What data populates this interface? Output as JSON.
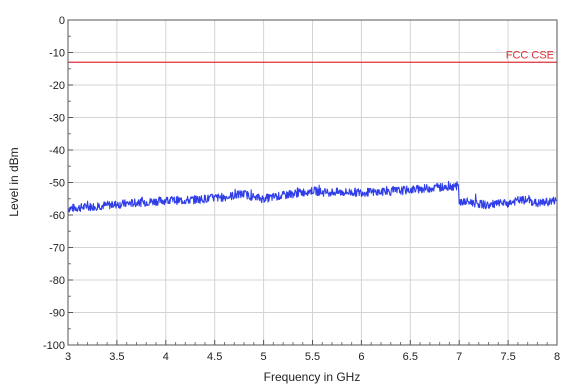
{
  "chart_data": {
    "type": "line",
    "title": "",
    "xlabel": "Frequency in GHz",
    "ylabel": "Level in dBm",
    "xlim": [
      3,
      8
    ],
    "ylim": [
      -100,
      0
    ],
    "x_ticks": [
      3,
      3.5,
      4,
      4.5,
      5,
      5.5,
      6,
      6.5,
      7,
      7.5,
      8
    ],
    "x_tick_labels": [
      "3",
      "3.5",
      "4",
      "4.5",
      "5",
      "5.5",
      "6",
      "6.5",
      "7",
      "7.5",
      "8"
    ],
    "y_ticks": [
      0,
      -10,
      -20,
      -30,
      -40,
      -50,
      -60,
      -70,
      -80,
      -90,
      -100
    ],
    "y_tick_labels": [
      "0",
      "-10",
      "-20",
      "-30",
      "-40",
      "-50",
      "-60",
      "-70",
      "-80",
      "-90",
      "-100"
    ],
    "grid": true,
    "limit_line": {
      "name": "FCC CSE",
      "value": -13,
      "color": "#e0303a"
    },
    "series": [
      {
        "color": "#2f3ee8",
        "x": [
          3.0,
          3.2,
          3.4,
          3.6,
          3.8,
          4.0,
          4.2,
          4.4,
          4.6,
          4.7,
          4.8,
          4.9,
          5.0,
          5.2,
          5.4,
          5.5,
          5.6,
          5.8,
          6.0,
          6.2,
          6.4,
          6.6,
          6.8,
          6.99,
          7.0,
          7.1,
          7.2,
          7.3,
          7.4,
          7.5,
          7.6,
          7.7,
          7.8,
          7.9,
          8.0
        ],
        "y": [
          -58,
          -57.5,
          -57,
          -56.5,
          -56,
          -55.5,
          -55.5,
          -55,
          -54.5,
          -54,
          -53.5,
          -54.5,
          -55,
          -54,
          -53,
          -52.5,
          -53,
          -53,
          -53,
          -53,
          -52.5,
          -52,
          -51.5,
          -51,
          -56,
          -56,
          -56.5,
          -57,
          -56.5,
          -56.5,
          -55.5,
          -55.5,
          -56.5,
          -56,
          -55.5
        ]
      }
    ]
  }
}
